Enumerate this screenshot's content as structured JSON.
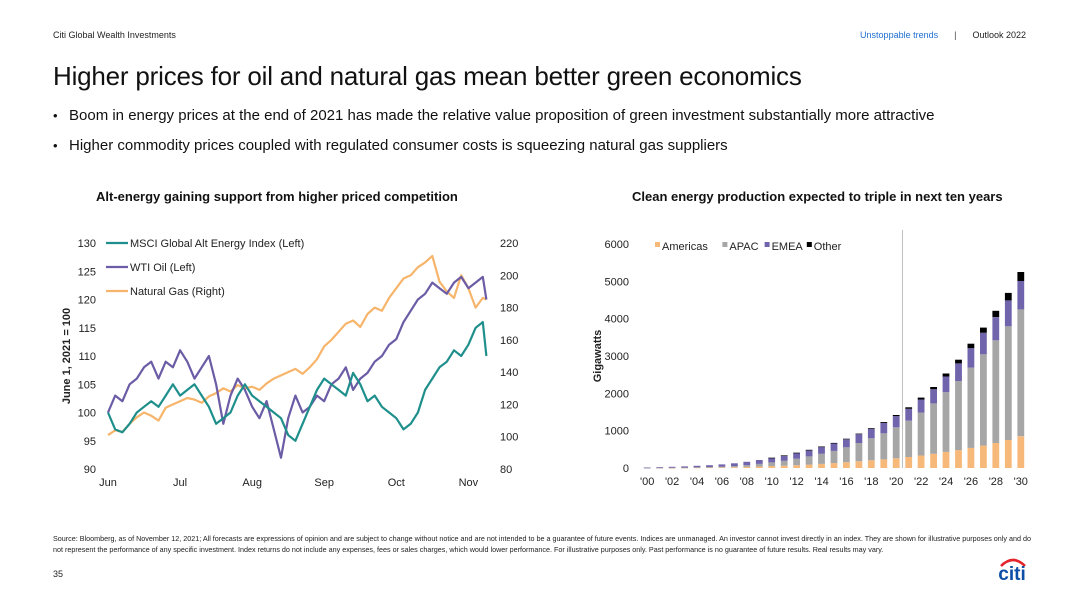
{
  "header": {
    "brand": "Citi Global Wealth Investments",
    "link": "Unstoppable trends",
    "separator": "|",
    "edition": "Outlook 2022"
  },
  "title": "Higher prices for oil and natural gas mean better green economics",
  "bullets": [
    "Boom in energy prices at the end of 2021 has made the relative value proposition of green investment substantially more attractive",
    "Higher commodity prices coupled with regulated consumer costs is squeezing natural gas suppliers"
  ],
  "chart_data": [
    {
      "type": "line",
      "title": "Alt-energy gaining support from higher priced competition",
      "ylabel": "June 1, 2021 = 100",
      "x_ticks": [
        "Jun",
        "Jul",
        "Aug",
        "Sep",
        "Oct",
        "Nov"
      ],
      "x_range": [
        0,
        5.3
      ],
      "ylim_left": [
        90,
        130
      ],
      "yticks_left": [
        "90",
        "95",
        "100",
        "105",
        "110",
        "115",
        "120",
        "125",
        "130"
      ],
      "ylim_right": [
        80,
        220
      ],
      "yticks_right": [
        "80",
        "100",
        "120",
        "140",
        "160",
        "180",
        "200",
        "220"
      ],
      "legend_position": "top-left",
      "colors": {
        "alt_energy": "#1f8f8c",
        "wti": "#6b5ca5",
        "gas": "#f6b56b"
      },
      "series": [
        {
          "name": "MSCI Global Alt Energy Index (Left)",
          "axis": "left",
          "x": [
            0,
            0.1,
            0.2,
            0.3,
            0.4,
            0.5,
            0.6,
            0.7,
            0.8,
            0.9,
            1.0,
            1.1,
            1.2,
            1.3,
            1.4,
            1.5,
            1.6,
            1.7,
            1.8,
            1.9,
            2.0,
            2.1,
            2.2,
            2.3,
            2.4,
            2.5,
            2.6,
            2.7,
            2.8,
            2.9,
            3.0,
            3.1,
            3.2,
            3.3,
            3.4,
            3.5,
            3.6,
            3.7,
            3.8,
            3.9,
            4.0,
            4.1,
            4.2,
            4.3,
            4.4,
            4.5,
            4.6,
            4.7,
            4.8,
            4.9,
            5.0,
            5.1,
            5.2,
            5.25
          ],
          "values": [
            100,
            97,
            96.5,
            98,
            100,
            101,
            102,
            101,
            103,
            105,
            103,
            104,
            105,
            103,
            101,
            98,
            99,
            100,
            103,
            105,
            103,
            102,
            101,
            100,
            99,
            96,
            95,
            98,
            101,
            104,
            106,
            105,
            104,
            103,
            107,
            105,
            102,
            103,
            101,
            100,
            99,
            97,
            98,
            100,
            104,
            106,
            108,
            109,
            111,
            110,
            112,
            115,
            116,
            110
          ]
        },
        {
          "name": "WTI Oil (Left)",
          "axis": "left",
          "x": [
            0,
            0.1,
            0.2,
            0.3,
            0.4,
            0.5,
            0.6,
            0.7,
            0.8,
            0.9,
            1.0,
            1.1,
            1.2,
            1.3,
            1.4,
            1.5,
            1.6,
            1.7,
            1.8,
            1.9,
            2.0,
            2.1,
            2.2,
            2.3,
            2.4,
            2.5,
            2.6,
            2.7,
            2.8,
            2.9,
            3.0,
            3.1,
            3.2,
            3.3,
            3.4,
            3.5,
            3.6,
            3.7,
            3.8,
            3.9,
            4.0,
            4.1,
            4.2,
            4.3,
            4.4,
            4.5,
            4.6,
            4.7,
            4.8,
            4.9,
            5.0,
            5.1,
            5.2,
            5.25
          ],
          "values": [
            100,
            103,
            102,
            105,
            106,
            108,
            109,
            106,
            109,
            108,
            111,
            109,
            106,
            108,
            110,
            105,
            98,
            103,
            106,
            104,
            101,
            99,
            102,
            97,
            92,
            99,
            103,
            100,
            101,
            103,
            102,
            105,
            106,
            108,
            104,
            106,
            107,
            109,
            110,
            112,
            113,
            116,
            118,
            120,
            121,
            123,
            122,
            121,
            123,
            124,
            122,
            123,
            124,
            120
          ]
        },
        {
          "name": "Natural Gas (Right)",
          "axis": "right",
          "x": [
            0,
            0.1,
            0.2,
            0.3,
            0.4,
            0.5,
            0.6,
            0.7,
            0.8,
            0.9,
            1.0,
            1.1,
            1.2,
            1.3,
            1.4,
            1.5,
            1.6,
            1.7,
            1.8,
            1.9,
            2.0,
            2.1,
            2.2,
            2.3,
            2.4,
            2.5,
            2.6,
            2.7,
            2.8,
            2.9,
            3.0,
            3.1,
            3.2,
            3.3,
            3.4,
            3.5,
            3.6,
            3.7,
            3.8,
            3.9,
            4.0,
            4.1,
            4.2,
            4.3,
            4.4,
            4.5,
            4.6,
            4.7,
            4.8,
            4.9,
            5.0,
            5.1,
            5.2,
            5.25
          ],
          "values": [
            101,
            104,
            103,
            108,
            112,
            115,
            113,
            110,
            118,
            120,
            122,
            124,
            123,
            121,
            125,
            127,
            130,
            128,
            132,
            130,
            131,
            129,
            133,
            136,
            138,
            140,
            142,
            139,
            143,
            148,
            156,
            160,
            165,
            170,
            172,
            168,
            176,
            180,
            178,
            186,
            192,
            198,
            200,
            205,
            208,
            212,
            196,
            190,
            186,
            200,
            192,
            180,
            186,
            185
          ]
        }
      ]
    },
    {
      "type": "bar",
      "stacked": true,
      "title": "Clean energy production expected to triple in next ten years",
      "ylabel": "Gigawatts",
      "ylim": [
        0,
        6000
      ],
      "yticks": [
        "0",
        "1000",
        "2000",
        "3000",
        "4000",
        "5000",
        "6000"
      ],
      "x_tick_labels": [
        "'00",
        "'02",
        "'04",
        "'06",
        "'08",
        "'10",
        "'12",
        "'14",
        "'16",
        "'18",
        "'20",
        "'22",
        "'24",
        "'26",
        "'28",
        "'30"
      ],
      "categories": [
        "2000",
        "2001",
        "2002",
        "2003",
        "2004",
        "2005",
        "2006",
        "2007",
        "2008",
        "2009",
        "2010",
        "2011",
        "2012",
        "2013",
        "2014",
        "2015",
        "2016",
        "2017",
        "2018",
        "2019",
        "2020",
        "2021",
        "2022",
        "2023",
        "2024",
        "2025",
        "2026",
        "2027",
        "2028",
        "2029",
        "2030"
      ],
      "forecast_start": "2021",
      "legend_position": "top-left",
      "colors": {
        "Americas": "#f7b97a",
        "APAC": "#a6a6a6",
        "EMEA": "#7065ad",
        "Other": "#000000"
      },
      "series": [
        {
          "name": "Americas",
          "values": [
            2,
            3,
            5,
            7,
            10,
            13,
            17,
            22,
            30,
            38,
            50,
            60,
            75,
            90,
            110,
            130,
            155,
            180,
            205,
            230,
            260,
            295,
            335,
            380,
            430,
            480,
            540,
            600,
            670,
            750,
            850
          ]
        },
        {
          "name": "APAC",
          "values": [
            1,
            2,
            3,
            5,
            8,
            12,
            18,
            30,
            45,
            70,
            100,
            135,
            175,
            220,
            270,
            330,
            400,
            490,
            590,
            700,
            830,
            970,
            1150,
            1350,
            1600,
            1850,
            2150,
            2450,
            2750,
            3050,
            3400
          ]
        },
        {
          "name": "EMEA",
          "values": [
            10,
            18,
            25,
            32,
            40,
            50,
            62,
            75,
            90,
            105,
            120,
            138,
            155,
            170,
            185,
            200,
            215,
            235,
            255,
            275,
            300,
            320,
            350,
            380,
            420,
            470,
            520,
            570,
            620,
            690,
            760
          ]
        },
        {
          "name": "Other",
          "values": [
            0,
            0,
            0,
            0,
            0,
            0,
            0,
            0,
            0,
            0,
            5,
            5,
            6,
            8,
            10,
            12,
            14,
            16,
            20,
            24,
            30,
            40,
            50,
            60,
            80,
            100,
            120,
            140,
            170,
            200,
            240
          ]
        }
      ]
    }
  ],
  "footer": "Source: Bloomberg, as of November 12, 2021; All forecasts are expressions of opinion and are subject to change without notice and are not intended to be a guarantee of future events. Indices are unmanaged. An investor cannot invest directly in an index. They are shown for illustrative purposes only and do not represent the performance of any specific investment. Index returns do not include any expenses, fees or sales charges, which would lower performance. For illustrative purposes only. Past performance is no guarantee of future results. Real results may vary.",
  "page_number": "35",
  "logo": {
    "text": "citi",
    "arc_color": "#e3242b",
    "text_color": "#0d4ea6"
  }
}
